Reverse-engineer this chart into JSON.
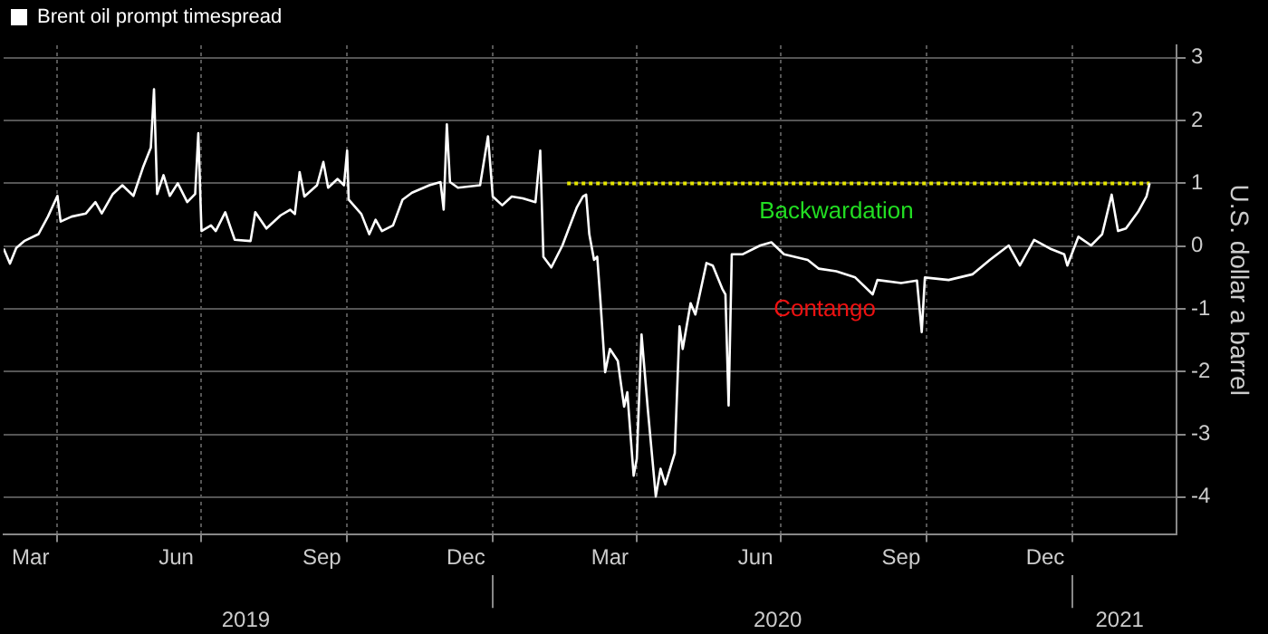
{
  "chart_data": {
    "type": "line",
    "ylabel": "U.S. dollar a barrel",
    "legend": "top left",
    "grid": true,
    "marker": "none",
    "xlim": [
      "2019-02-26",
      "2021-03-08"
    ],
    "ylim": [
      -4.6,
      3.2
    ],
    "yticks": [
      -4,
      -3,
      -2,
      -1,
      0,
      1,
      2,
      3
    ],
    "xticks": [
      {
        "value": "2019-03-15",
        "label": "Mar"
      },
      {
        "value": "2019-04-01",
        "label": null
      },
      {
        "value": "2019-06-15",
        "label": "Jun"
      },
      {
        "value": "2019-07-01",
        "label": null
      },
      {
        "value": "2019-09-15",
        "label": "Sep"
      },
      {
        "value": "2019-10-01",
        "label": null
      },
      {
        "value": "2019-12-15",
        "label": "Dec"
      },
      {
        "value": "2020-01-01",
        "label": null
      },
      {
        "value": "2020-03-15",
        "label": "Mar"
      },
      {
        "value": "2020-04-01",
        "label": null
      },
      {
        "value": "2020-06-15",
        "label": "Jun"
      },
      {
        "value": "2020-07-01",
        "label": null
      },
      {
        "value": "2020-09-15",
        "label": "Sep"
      },
      {
        "value": "2020-10-01",
        "label": null
      },
      {
        "value": "2020-12-15",
        "label": "Dec"
      },
      {
        "value": "2021-01-01",
        "label": null
      }
    ],
    "x2lim": [
      "2019-02-26",
      "2021-03-08"
    ],
    "x2ticks": [
      {
        "value": "2019-07-29",
        "label": "2019"
      },
      {
        "value": "2020-01-01",
        "label": null
      },
      {
        "value": "2020-06-29",
        "label": "2020"
      },
      {
        "value": "2021-01-01",
        "label": null
      },
      {
        "value": "2021-01-31",
        "label": "2021"
      }
    ],
    "annotations": [
      "Backwardation",
      "Contango"
    ],
    "series": [
      {
        "name": "Brent oil prompt timespread",
        "color": "#ffffff",
        "x": [
          "2019-02-26",
          "2019-03-02",
          "2019-03-06",
          "2019-03-11",
          "2019-03-20",
          "2019-03-26",
          "2019-04-01",
          "2019-04-03",
          "2019-04-10",
          "2019-04-19",
          "2019-04-25",
          "2019-04-29",
          "2019-05-06",
          "2019-05-12",
          "2019-05-19",
          "2019-05-25",
          "2019-05-30",
          "2019-06-01",
          "2019-06-03",
          "2019-06-07",
          "2019-06-11",
          "2019-06-16",
          "2019-06-22",
          "2019-06-27",
          "2019-06-29",
          "2019-07-01",
          "2019-07-07",
          "2019-07-10",
          "2019-07-16",
          "2019-07-22",
          "2019-08-01",
          "2019-08-04",
          "2019-08-11",
          "2019-08-20",
          "2019-08-26",
          "2019-08-29",
          "2019-09-01",
          "2019-09-04",
          "2019-09-12",
          "2019-09-16",
          "2019-09-19",
          "2019-09-25",
          "2019-09-29",
          "2019-10-01",
          "2019-10-02",
          "2019-10-10",
          "2019-10-15",
          "2019-10-19",
          "2019-10-23",
          "2019-10-30",
          "2019-11-05",
          "2019-11-11",
          "2019-11-22",
          "2019-11-29",
          "2019-12-01",
          "2019-12-03",
          "2019-12-05",
          "2019-12-10",
          "2019-12-24",
          "2019-12-29",
          "2020-01-01",
          "2020-01-07",
          "2020-01-13",
          "2020-01-20",
          "2020-01-28",
          "2020-01-31",
          "2020-02-02",
          "2020-02-07",
          "2020-02-14",
          "2020-02-23",
          "2020-02-27",
          "2020-02-29",
          "2020-03-02",
          "2020-03-05",
          "2020-03-07",
          "2020-03-09",
          "2020-03-12",
          "2020-03-15",
          "2020-03-20",
          "2020-03-24",
          "2020-03-26",
          "2020-03-30",
          "2020-04-01",
          "2020-04-04",
          "2020-04-08",
          "2020-04-13",
          "2020-04-16",
          "2020-04-19",
          "2020-04-25",
          "2020-04-28",
          "2020-04-30",
          "2020-05-05",
          "2020-05-08",
          "2020-05-15",
          "2020-05-19",
          "2020-05-25",
          "2020-05-27",
          "2020-05-29",
          "2020-05-31",
          "2020-06-07",
          "2020-06-18",
          "2020-06-25",
          "2020-07-03",
          "2020-07-18",
          "2020-07-25",
          "2020-08-05",
          "2020-08-17",
          "2020-08-28",
          "2020-08-31",
          "2020-09-15",
          "2020-09-25",
          "2020-09-28",
          "2020-09-30",
          "2020-10-15",
          "2020-10-30",
          "2020-11-10",
          "2020-11-22",
          "2020-11-29",
          "2020-12-08",
          "2020-12-18",
          "2020-12-27",
          "2020-12-29",
          "2021-01-05",
          "2021-01-13",
          "2021-01-20",
          "2021-01-26",
          "2021-01-30",
          "2021-02-04",
          "2021-02-12",
          "2021-02-17",
          "2021-02-19"
        ],
        "values": [
          -0.04,
          -0.28,
          -0.03,
          0.08,
          0.19,
          0.47,
          0.8,
          0.39,
          0.47,
          0.52,
          0.7,
          0.52,
          0.83,
          0.97,
          0.8,
          1.25,
          1.57,
          2.5,
          0.83,
          1.13,
          0.8,
          1.0,
          0.7,
          0.83,
          1.8,
          0.24,
          0.33,
          0.24,
          0.54,
          0.1,
          0.08,
          0.54,
          0.28,
          0.49,
          0.58,
          0.51,
          1.18,
          0.79,
          0.97,
          1.34,
          0.93,
          1.07,
          0.97,
          1.52,
          0.74,
          0.51,
          0.19,
          0.42,
          0.24,
          0.33,
          0.74,
          0.85,
          0.97,
          1.02,
          0.58,
          1.94,
          1.02,
          0.93,
          0.97,
          1.75,
          0.79,
          0.65,
          0.79,
          0.76,
          0.7,
          1.52,
          -0.17,
          -0.34,
          0.01,
          0.61,
          0.79,
          0.82,
          0.19,
          -0.22,
          -0.17,
          -0.86,
          -2.01,
          -1.64,
          -1.83,
          -2.56,
          -2.33,
          -3.66,
          -3.39,
          -1.41,
          -2.61,
          -3.99,
          -3.55,
          -3.8,
          -3.3,
          -1.28,
          -1.64,
          -0.91,
          -1.09,
          -0.27,
          -0.31,
          -0.68,
          -0.77,
          -2.54,
          -0.13,
          -0.13,
          0.01,
          0.06,
          -0.13,
          -0.22,
          -0.36,
          -0.4,
          -0.5,
          -0.77,
          -0.54,
          -0.59,
          -0.55,
          -1.37,
          -0.5,
          -0.54,
          -0.45,
          -0.22,
          0.01,
          -0.31,
          0.1,
          -0.04,
          -0.13,
          -0.31,
          0.15,
          0.01,
          0.19,
          0.82,
          0.24,
          0.28,
          0.56,
          0.79,
          1.0
        ]
      },
      {
        "color": "#e6e600",
        "line_style": "dotted",
        "x": [
          "2020-02-17",
          "2021-02-19"
        ],
        "values": [
          1,
          1
        ]
      }
    ]
  }
}
